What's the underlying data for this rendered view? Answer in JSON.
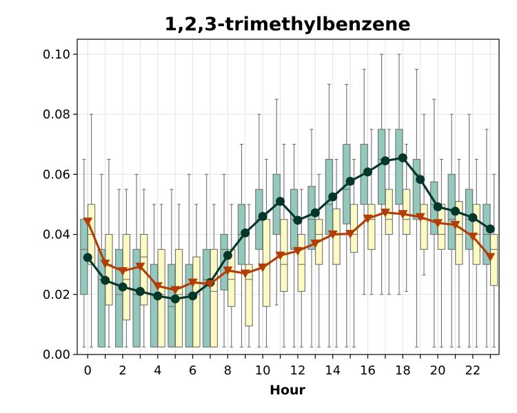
{
  "chart_data": {
    "type": "box",
    "title": "1,2,3-trimethylbenzene",
    "xlabel": "Hour",
    "ylabel": "",
    "ylim": [
      0,
      0.105
    ],
    "xlim": [
      -0.6,
      23.5
    ],
    "x_ticks": [
      0,
      2,
      4,
      6,
      8,
      10,
      12,
      14,
      16,
      18,
      20,
      22
    ],
    "y_ticks": [
      0.0,
      0.02,
      0.04,
      0.06,
      0.08,
      0.1
    ],
    "x_tick_labels": [
      "0",
      "2",
      "4",
      "6",
      "8",
      "10",
      "12",
      "14",
      "16",
      "18",
      "20",
      "22"
    ],
    "y_tick_labels": [
      "0.00",
      "0.02",
      "0.04",
      "0.06",
      "0.08",
      "0.10"
    ],
    "grid": true,
    "legend": "none",
    "hours": [
      0,
      1,
      2,
      3,
      4,
      5,
      6,
      7,
      8,
      9,
      10,
      11,
      12,
      13,
      14,
      15,
      16,
      17,
      18,
      19,
      20,
      21,
      22,
      23
    ],
    "series": [
      {
        "fill": "#93c9bd",
        "line_color": "#05362a",
        "marker": "circle",
        "mean": [
          0.0323,
          0.0247,
          0.0225,
          0.021,
          0.0195,
          0.0185,
          0.0195,
          0.024,
          0.033,
          0.0405,
          0.046,
          0.051,
          0.0447,
          0.0472,
          0.0525,
          0.0577,
          0.0608,
          0.0645,
          0.0655,
          0.0583,
          0.0492,
          0.0477,
          0.0456,
          0.0418
        ],
        "boxes": [
          {
            "wl": 0.0025,
            "q1": 0.02,
            "med": 0.035,
            "q3": 0.045,
            "wh": 0.065
          },
          {
            "wl": 0.0025,
            "q1": 0.0025,
            "med": 0.025,
            "q3": 0.035,
            "wh": 0.06
          },
          {
            "wl": 0.0025,
            "q1": 0.0025,
            "med": 0.02,
            "q3": 0.035,
            "wh": 0.055
          },
          {
            "wl": 0.0025,
            "q1": 0.0025,
            "med": 0.02,
            "q3": 0.035,
            "wh": 0.06
          },
          {
            "wl": 0.0025,
            "q1": 0.0025,
            "med": 0.02,
            "q3": 0.03,
            "wh": 0.05
          },
          {
            "wl": 0.0025,
            "q1": 0.0025,
            "med": 0.016,
            "q3": 0.03,
            "wh": 0.055
          },
          {
            "wl": 0.0025,
            "q1": 0.0025,
            "med": 0.02,
            "q3": 0.03,
            "wh": 0.06
          },
          {
            "wl": 0.0025,
            "q1": 0.0025,
            "med": 0.025,
            "q3": 0.035,
            "wh": 0.06
          },
          {
            "wl": 0.0025,
            "q1": 0.0215,
            "med": 0.035,
            "q3": 0.04,
            "wh": 0.06
          },
          {
            "wl": 0.0025,
            "q1": 0.03,
            "med": 0.04,
            "q3": 0.05,
            "wh": 0.07
          },
          {
            "wl": 0.0025,
            "q1": 0.035,
            "med": 0.045,
            "q3": 0.055,
            "wh": 0.08
          },
          {
            "wl": 0.0165,
            "q1": 0.04,
            "med": 0.05,
            "q3": 0.06,
            "wh": 0.085
          },
          {
            "wl": 0.0025,
            "q1": 0.035,
            "med": 0.045,
            "q3": 0.055,
            "wh": 0.07
          },
          {
            "wl": 0.0025,
            "q1": 0.035,
            "med": 0.045,
            "q3": 0.056,
            "wh": 0.075
          },
          {
            "wl": 0.0025,
            "q1": 0.04,
            "med": 0.05,
            "q3": 0.065,
            "wh": 0.09
          },
          {
            "wl": 0.0025,
            "q1": 0.0435,
            "med": 0.055,
            "q3": 0.07,
            "wh": 0.09
          },
          {
            "wl": 0.02,
            "q1": 0.05,
            "med": 0.06,
            "q3": 0.07,
            "wh": 0.095
          },
          {
            "wl": 0.02,
            "q1": 0.05,
            "med": 0.065,
            "q3": 0.075,
            "wh": 0.1
          },
          {
            "wl": 0.02,
            "q1": 0.05,
            "med": 0.065,
            "q3": 0.075,
            "wh": 0.1
          },
          {
            "wl": 0.0025,
            "q1": 0.045,
            "med": 0.06,
            "q3": 0.065,
            "wh": 0.095
          },
          {
            "wl": 0.0025,
            "q1": 0.04,
            "med": 0.05,
            "q3": 0.0575,
            "wh": 0.085
          },
          {
            "wl": 0.0025,
            "q1": 0.035,
            "med": 0.045,
            "q3": 0.06,
            "wh": 0.08
          },
          {
            "wl": 0.0025,
            "q1": 0.035,
            "med": 0.045,
            "q3": 0.055,
            "wh": 0.08
          },
          {
            "wl": 0.0025,
            "q1": 0.03,
            "med": 0.04,
            "q3": 0.05,
            "wh": 0.075
          }
        ]
      },
      {
        "fill": "#fbfac2",
        "line_color": "#b33d06",
        "marker": "triangle-down",
        "mean": [
          0.0443,
          0.0303,
          0.0278,
          0.0293,
          0.0228,
          0.0215,
          0.024,
          0.0235,
          0.028,
          0.027,
          0.029,
          0.033,
          0.0345,
          0.037,
          0.04,
          0.0402,
          0.0453,
          0.0473,
          0.0468,
          0.0458,
          0.0438,
          0.0432,
          0.0393,
          0.0325
        ],
        "boxes": [
          {
            "wl": 0.0025,
            "q1": 0.03,
            "med": 0.04,
            "q3": 0.05,
            "wh": 0.08
          },
          {
            "wl": 0.0025,
            "q1": 0.0165,
            "med": 0.03,
            "q3": 0.04,
            "wh": 0.065
          },
          {
            "wl": 0.0025,
            "q1": 0.0115,
            "med": 0.025,
            "q3": 0.04,
            "wh": 0.055
          },
          {
            "wl": 0.0025,
            "q1": 0.0165,
            "med": 0.0325,
            "q3": 0.04,
            "wh": 0.055
          },
          {
            "wl": 0.0025,
            "q1": 0.0025,
            "med": 0.02,
            "q3": 0.035,
            "wh": 0.05
          },
          {
            "wl": 0.0025,
            "q1": 0.0025,
            "med": 0.02,
            "q3": 0.035,
            "wh": 0.05
          },
          {
            "wl": 0.0025,
            "q1": 0.0025,
            "med": 0.02,
            "q3": 0.0325,
            "wh": 0.05
          },
          {
            "wl": 0.0025,
            "q1": 0.0025,
            "med": 0.021,
            "q3": 0.035,
            "wh": 0.05
          },
          {
            "wl": 0.0025,
            "q1": 0.016,
            "med": 0.025,
            "q3": 0.035,
            "wh": 0.05
          },
          {
            "wl": 0.0025,
            "q1": 0.0095,
            "med": 0.025,
            "q3": 0.03,
            "wh": 0.05
          },
          {
            "wl": 0.0025,
            "q1": 0.016,
            "med": 0.03,
            "q3": 0.045,
            "wh": 0.065
          },
          {
            "wl": 0.0025,
            "q1": 0.021,
            "med": 0.03,
            "q3": 0.045,
            "wh": 0.07
          },
          {
            "wl": 0.0025,
            "q1": 0.021,
            "med": 0.03,
            "q3": 0.04,
            "wh": 0.055
          },
          {
            "wl": 0.0025,
            "q1": 0.03,
            "med": 0.04,
            "q3": 0.045,
            "wh": 0.06
          },
          {
            "wl": 0.0025,
            "q1": 0.03,
            "med": 0.04,
            "q3": 0.0485,
            "wh": 0.065
          },
          {
            "wl": 0.0025,
            "q1": 0.034,
            "med": 0.04,
            "q3": 0.05,
            "wh": 0.065
          },
          {
            "wl": 0.02,
            "q1": 0.035,
            "med": 0.045,
            "q3": 0.05,
            "wh": 0.075
          },
          {
            "wl": 0.02,
            "q1": 0.04,
            "med": 0.045,
            "q3": 0.055,
            "wh": 0.075
          },
          {
            "wl": 0.021,
            "q1": 0.04,
            "med": 0.045,
            "q3": 0.055,
            "wh": 0.07
          },
          {
            "wl": 0.0265,
            "q1": 0.035,
            "med": 0.045,
            "q3": 0.05,
            "wh": 0.08
          },
          {
            "wl": 0.0025,
            "q1": 0.035,
            "med": 0.04,
            "q3": 0.05,
            "wh": 0.065
          },
          {
            "wl": 0.0025,
            "q1": 0.03,
            "med": 0.04,
            "q3": 0.051,
            "wh": 0.065
          },
          {
            "wl": 0.0025,
            "q1": 0.03,
            "med": 0.04,
            "q3": 0.05,
            "wh": 0.065
          },
          {
            "wl": 0.0025,
            "q1": 0.023,
            "med": 0.035,
            "q3": 0.04,
            "wh": 0.06
          }
        ]
      }
    ]
  }
}
